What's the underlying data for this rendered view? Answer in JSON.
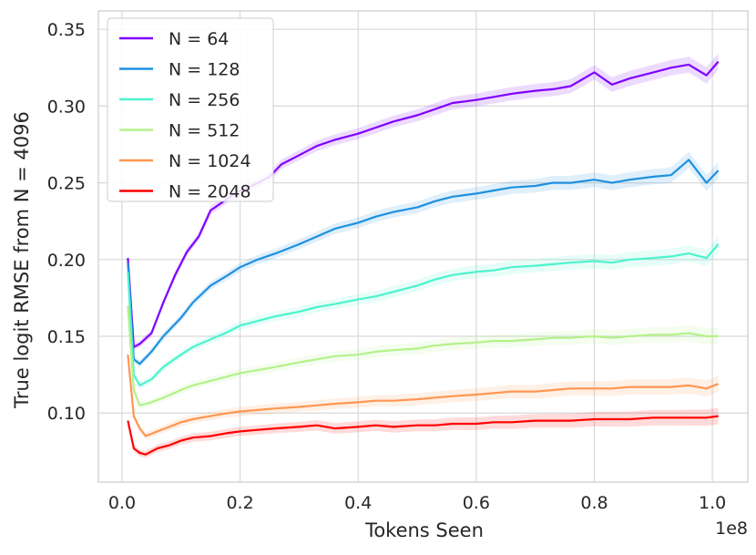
{
  "chart_data": {
    "type": "line",
    "title": "",
    "xlabel": "Tokens Seen",
    "ylabel": "True logit RMSE from N = 4096",
    "x_offset_label": "1e8",
    "xlim": [
      -0.04,
      1.06
    ],
    "ylim": [
      0.055,
      0.362
    ],
    "x_ticks": [
      0.0,
      0.2,
      0.4,
      0.6,
      0.8,
      1.0
    ],
    "x_tick_labels": [
      "0.0",
      "0.2",
      "0.4",
      "0.6",
      "0.8",
      "1.0"
    ],
    "y_ticks": [
      0.1,
      0.15,
      0.2,
      0.25,
      0.3,
      0.35
    ],
    "y_tick_labels": [
      "0.10",
      "0.15",
      "0.20",
      "0.25",
      "0.30",
      "0.35"
    ],
    "grid": true,
    "legend_position": "top-left",
    "series": [
      {
        "name": "N = 64",
        "color": "#8000ff",
        "points": [
          [
            0.01,
            0.201
          ],
          [
            0.02,
            0.143
          ],
          [
            0.03,
            0.145
          ],
          [
            0.05,
            0.152
          ],
          [
            0.07,
            0.172
          ],
          [
            0.09,
            0.19
          ],
          [
            0.11,
            0.205
          ],
          [
            0.13,
            0.215
          ],
          [
            0.15,
            0.232
          ],
          [
            0.18,
            0.24
          ],
          [
            0.2,
            0.245
          ],
          [
            0.22,
            0.248
          ],
          [
            0.25,
            0.254
          ],
          [
            0.27,
            0.262
          ],
          [
            0.3,
            0.268
          ],
          [
            0.33,
            0.274
          ],
          [
            0.36,
            0.278
          ],
          [
            0.4,
            0.282
          ],
          [
            0.43,
            0.286
          ],
          [
            0.46,
            0.29
          ],
          [
            0.5,
            0.294
          ],
          [
            0.53,
            0.298
          ],
          [
            0.56,
            0.302
          ],
          [
            0.6,
            0.304
          ],
          [
            0.63,
            0.306
          ],
          [
            0.66,
            0.308
          ],
          [
            0.7,
            0.31
          ],
          [
            0.73,
            0.311
          ],
          [
            0.76,
            0.313
          ],
          [
            0.8,
            0.322
          ],
          [
            0.83,
            0.314
          ],
          [
            0.86,
            0.318
          ],
          [
            0.9,
            0.322
          ],
          [
            0.93,
            0.325
          ],
          [
            0.96,
            0.327
          ],
          [
            0.99,
            0.32
          ],
          [
            1.01,
            0.329
          ]
        ]
      },
      {
        "name": "N = 128",
        "color": "#1e90e0",
        "points": [
          [
            0.01,
            0.198
          ],
          [
            0.02,
            0.135
          ],
          [
            0.03,
            0.132
          ],
          [
            0.05,
            0.14
          ],
          [
            0.07,
            0.15
          ],
          [
            0.1,
            0.162
          ],
          [
            0.12,
            0.172
          ],
          [
            0.15,
            0.183
          ],
          [
            0.18,
            0.19
          ],
          [
            0.2,
            0.195
          ],
          [
            0.23,
            0.2
          ],
          [
            0.26,
            0.204
          ],
          [
            0.3,
            0.21
          ],
          [
            0.33,
            0.215
          ],
          [
            0.36,
            0.22
          ],
          [
            0.4,
            0.224
          ],
          [
            0.43,
            0.228
          ],
          [
            0.46,
            0.231
          ],
          [
            0.5,
            0.234
          ],
          [
            0.53,
            0.238
          ],
          [
            0.56,
            0.241
          ],
          [
            0.6,
            0.243
          ],
          [
            0.63,
            0.245
          ],
          [
            0.66,
            0.247
          ],
          [
            0.7,
            0.248
          ],
          [
            0.73,
            0.25
          ],
          [
            0.76,
            0.25
          ],
          [
            0.8,
            0.252
          ],
          [
            0.83,
            0.25
          ],
          [
            0.86,
            0.252
          ],
          [
            0.9,
            0.254
          ],
          [
            0.93,
            0.255
          ],
          [
            0.96,
            0.265
          ],
          [
            0.99,
            0.25
          ],
          [
            1.01,
            0.258
          ]
        ]
      },
      {
        "name": "N = 256",
        "color": "#4df3ce",
        "points": [
          [
            0.01,
            0.192
          ],
          [
            0.02,
            0.125
          ],
          [
            0.03,
            0.118
          ],
          [
            0.05,
            0.122
          ],
          [
            0.07,
            0.13
          ],
          [
            0.1,
            0.138
          ],
          [
            0.12,
            0.143
          ],
          [
            0.15,
            0.148
          ],
          [
            0.18,
            0.153
          ],
          [
            0.2,
            0.157
          ],
          [
            0.23,
            0.16
          ],
          [
            0.26,
            0.163
          ],
          [
            0.3,
            0.166
          ],
          [
            0.33,
            0.169
          ],
          [
            0.36,
            0.171
          ],
          [
            0.4,
            0.174
          ],
          [
            0.43,
            0.176
          ],
          [
            0.46,
            0.179
          ],
          [
            0.5,
            0.183
          ],
          [
            0.53,
            0.187
          ],
          [
            0.56,
            0.19
          ],
          [
            0.6,
            0.192
          ],
          [
            0.63,
            0.193
          ],
          [
            0.66,
            0.195
          ],
          [
            0.7,
            0.196
          ],
          [
            0.73,
            0.197
          ],
          [
            0.76,
            0.198
          ],
          [
            0.8,
            0.199
          ],
          [
            0.83,
            0.198
          ],
          [
            0.86,
            0.2
          ],
          [
            0.9,
            0.201
          ],
          [
            0.93,
            0.202
          ],
          [
            0.96,
            0.204
          ],
          [
            0.99,
            0.201
          ],
          [
            1.01,
            0.21
          ]
        ]
      },
      {
        "name": "N = 512",
        "color": "#b3f28a",
        "points": [
          [
            0.01,
            0.17
          ],
          [
            0.02,
            0.115
          ],
          [
            0.03,
            0.105
          ],
          [
            0.05,
            0.107
          ],
          [
            0.07,
            0.11
          ],
          [
            0.1,
            0.115
          ],
          [
            0.12,
            0.118
          ],
          [
            0.15,
            0.121
          ],
          [
            0.18,
            0.124
          ],
          [
            0.2,
            0.126
          ],
          [
            0.23,
            0.128
          ],
          [
            0.26,
            0.13
          ],
          [
            0.3,
            0.133
          ],
          [
            0.33,
            0.135
          ],
          [
            0.36,
            0.137
          ],
          [
            0.4,
            0.138
          ],
          [
            0.43,
            0.14
          ],
          [
            0.46,
            0.141
          ],
          [
            0.5,
            0.142
          ],
          [
            0.53,
            0.144
          ],
          [
            0.56,
            0.145
          ],
          [
            0.6,
            0.146
          ],
          [
            0.63,
            0.147
          ],
          [
            0.66,
            0.147
          ],
          [
            0.7,
            0.148
          ],
          [
            0.73,
            0.149
          ],
          [
            0.76,
            0.149
          ],
          [
            0.8,
            0.15
          ],
          [
            0.83,
            0.149
          ],
          [
            0.86,
            0.15
          ],
          [
            0.9,
            0.151
          ],
          [
            0.93,
            0.151
          ],
          [
            0.96,
            0.152
          ],
          [
            0.99,
            0.15
          ],
          [
            1.01,
            0.15
          ]
        ]
      },
      {
        "name": "N = 1024",
        "color": "#ff9650",
        "points": [
          [
            0.01,
            0.138
          ],
          [
            0.02,
            0.098
          ],
          [
            0.03,
            0.09
          ],
          [
            0.04,
            0.085
          ],
          [
            0.06,
            0.088
          ],
          [
            0.08,
            0.091
          ],
          [
            0.1,
            0.094
          ],
          [
            0.12,
            0.096
          ],
          [
            0.15,
            0.098
          ],
          [
            0.18,
            0.1
          ],
          [
            0.2,
            0.101
          ],
          [
            0.23,
            0.102
          ],
          [
            0.26,
            0.103
          ],
          [
            0.3,
            0.104
          ],
          [
            0.33,
            0.105
          ],
          [
            0.36,
            0.106
          ],
          [
            0.4,
            0.107
          ],
          [
            0.43,
            0.108
          ],
          [
            0.46,
            0.108
          ],
          [
            0.5,
            0.109
          ],
          [
            0.53,
            0.11
          ],
          [
            0.56,
            0.111
          ],
          [
            0.6,
            0.112
          ],
          [
            0.63,
            0.113
          ],
          [
            0.66,
            0.114
          ],
          [
            0.7,
            0.114
          ],
          [
            0.73,
            0.115
          ],
          [
            0.76,
            0.116
          ],
          [
            0.8,
            0.116
          ],
          [
            0.83,
            0.116
          ],
          [
            0.86,
            0.117
          ],
          [
            0.9,
            0.117
          ],
          [
            0.93,
            0.117
          ],
          [
            0.96,
            0.118
          ],
          [
            0.99,
            0.116
          ],
          [
            1.01,
            0.119
          ]
        ]
      },
      {
        "name": "N = 2048",
        "color": "#ff0000",
        "points": [
          [
            0.01,
            0.095
          ],
          [
            0.02,
            0.077
          ],
          [
            0.03,
            0.074
          ],
          [
            0.04,
            0.073
          ],
          [
            0.06,
            0.077
          ],
          [
            0.08,
            0.079
          ],
          [
            0.1,
            0.082
          ],
          [
            0.12,
            0.084
          ],
          [
            0.15,
            0.085
          ],
          [
            0.18,
            0.087
          ],
          [
            0.2,
            0.088
          ],
          [
            0.23,
            0.089
          ],
          [
            0.26,
            0.09
          ],
          [
            0.3,
            0.091
          ],
          [
            0.33,
            0.092
          ],
          [
            0.36,
            0.09
          ],
          [
            0.4,
            0.091
          ],
          [
            0.43,
            0.092
          ],
          [
            0.46,
            0.091
          ],
          [
            0.5,
            0.092
          ],
          [
            0.53,
            0.092
          ],
          [
            0.56,
            0.093
          ],
          [
            0.6,
            0.093
          ],
          [
            0.63,
            0.094
          ],
          [
            0.66,
            0.094
          ],
          [
            0.7,
            0.095
          ],
          [
            0.73,
            0.095
          ],
          [
            0.76,
            0.095
          ],
          [
            0.8,
            0.096
          ],
          [
            0.83,
            0.096
          ],
          [
            0.86,
            0.096
          ],
          [
            0.9,
            0.097
          ],
          [
            0.93,
            0.097
          ],
          [
            0.96,
            0.097
          ],
          [
            0.99,
            0.097
          ],
          [
            1.01,
            0.098
          ]
        ]
      }
    ]
  }
}
